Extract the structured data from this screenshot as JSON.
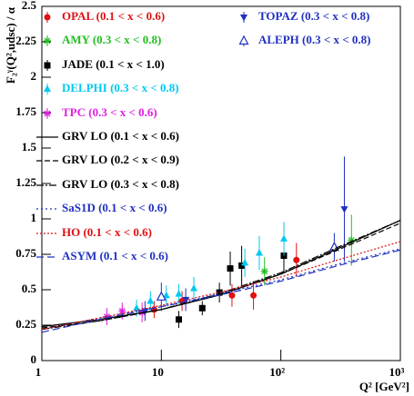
{
  "chart_data": {
    "type": "scatter",
    "ylabel": "F₂ᵞ(Q²,udsc) / α",
    "xlabel": "Q² [GeV²]",
    "xlim": [
      1,
      1000
    ],
    "xticks": [
      1,
      10,
      {
        "value": 100,
        "label": "10²"
      },
      {
        "value": 1000,
        "label": "10³"
      }
    ],
    "log_x": true,
    "ylim": [
      0,
      2.5
    ],
    "yticks": [
      0,
      0.25,
      0.5,
      0.75,
      1,
      1.25,
      1.5,
      1.75,
      2,
      2.25,
      2.5
    ],
    "series": [
      {
        "name": "OPAL (0.1 < x < 0.6)",
        "color": "#e01010",
        "marker": "circle",
        "x": [
          8.7,
          14.9,
          39,
          59,
          135
        ],
        "values": [
          0.36,
          0.42,
          0.46,
          0.46,
          0.71
        ],
        "errors": [
          0.06,
          0.07,
          0.08,
          0.1,
          0.12
        ]
      },
      {
        "name": "AMY (0.3 < x < 0.8)",
        "color": "#20c020",
        "marker": "star",
        "x": [
          73,
          390
        ],
        "values": [
          0.63,
          0.85
        ],
        "errors": [
          0.1,
          0.18
        ]
      },
      {
        "name": "JADE (0.1 < x < 1.0)",
        "color": "#000000",
        "marker": "square",
        "x": [
          14,
          22,
          30.6,
          37.7,
          47,
          106
        ],
        "values": [
          0.29,
          0.37,
          0.48,
          0.65,
          0.67,
          0.74
        ],
        "errors": [
          0.06,
          0.05,
          0.07,
          0.12,
          0.14,
          0.12
        ]
      },
      {
        "name": "DELPHI (0.3 < x < 0.8)",
        "color": "#00c8f0",
        "marker": "triangle-up",
        "x": [
          6.2,
          8.1,
          11,
          14,
          18.7,
          50,
          66,
          106
        ],
        "values": [
          0.37,
          0.42,
          0.46,
          0.47,
          0.51,
          0.69,
          0.76,
          0.86
        ],
        "errors": [
          0.06,
          0.07,
          0.07,
          0.07,
          0.08,
          0.1,
          0.12,
          0.12
        ]
      },
      {
        "name": "TPC (0.3 < x < 0.6)",
        "color": "#e020e0",
        "marker": "star",
        "x": [
          3.5,
          4.7,
          6.9
        ],
        "values": [
          0.31,
          0.35,
          0.34
        ],
        "errors": [
          0.06,
          0.06,
          0.07
        ]
      },
      {
        "name": "TOPAZ (0.3 < x < 0.8)",
        "color": "#2030c0",
        "marker": "triangle-down",
        "x": [
          7.3,
          16,
          340
        ],
        "values": [
          0.35,
          0.43,
          1.07
        ],
        "errors": [
          0.07,
          0.08,
          0.37
        ]
      },
      {
        "name": "ALEPH (0.3 < x < 0.8)",
        "color": "#2030c0",
        "marker": "triangle-open",
        "x": [
          10,
          280
        ],
        "values": [
          0.45,
          0.8
        ],
        "errors": [
          0.1,
          0.1
        ]
      },
      {
        "name": "GRV LO (0.1 < x < 0.6)",
        "color": "#000000",
        "dash": "solid",
        "x": [
          1,
          3,
          10,
          30,
          100,
          300,
          1000
        ],
        "values": [
          0.24,
          0.29,
          0.36,
          0.46,
          0.61,
          0.79,
          0.99
        ]
      },
      {
        "name": "GRV LO (0.2 < x < 0.9)",
        "color": "#000000",
        "dash": "6 3",
        "x": [
          1,
          3,
          10,
          30,
          100,
          300,
          1000
        ],
        "values": [
          0.23,
          0.28,
          0.36,
          0.46,
          0.61,
          0.78,
          0.97
        ]
      },
      {
        "name": "GRV LO (0.3 < x < 0.8)",
        "color": "#000000",
        "dash": "8 2 2 2",
        "x": [
          1,
          3,
          10,
          30,
          100,
          300,
          1000
        ],
        "values": [
          0.22,
          0.28,
          0.36,
          0.47,
          0.62,
          0.8,
          0.99
        ]
      },
      {
        "name": "SaS1D (0.1 < x < 0.6)",
        "color": "#2030c0",
        "dash": "2 3",
        "x": [
          1,
          3,
          10,
          30,
          100,
          300,
          1000
        ],
        "values": [
          0.22,
          0.3,
          0.38,
          0.47,
          0.57,
          0.68,
          0.79
        ]
      },
      {
        "name": "HO (0.1 < x < 0.6)",
        "color": "#e01010",
        "dash": "2 2",
        "x": [
          1,
          3,
          10,
          30,
          100,
          300,
          1000
        ],
        "values": [
          0.22,
          0.3,
          0.39,
          0.48,
          0.59,
          0.71,
          0.84
        ]
      },
      {
        "name": "ASYM (0.1 < x < 0.6)",
        "color": "#2030c0",
        "dash": "8 4",
        "x": [
          1,
          3,
          10,
          30,
          100,
          300,
          1000
        ],
        "values": [
          0.2,
          0.29,
          0.38,
          0.46,
          0.56,
          0.67,
          0.78
        ]
      }
    ]
  }
}
